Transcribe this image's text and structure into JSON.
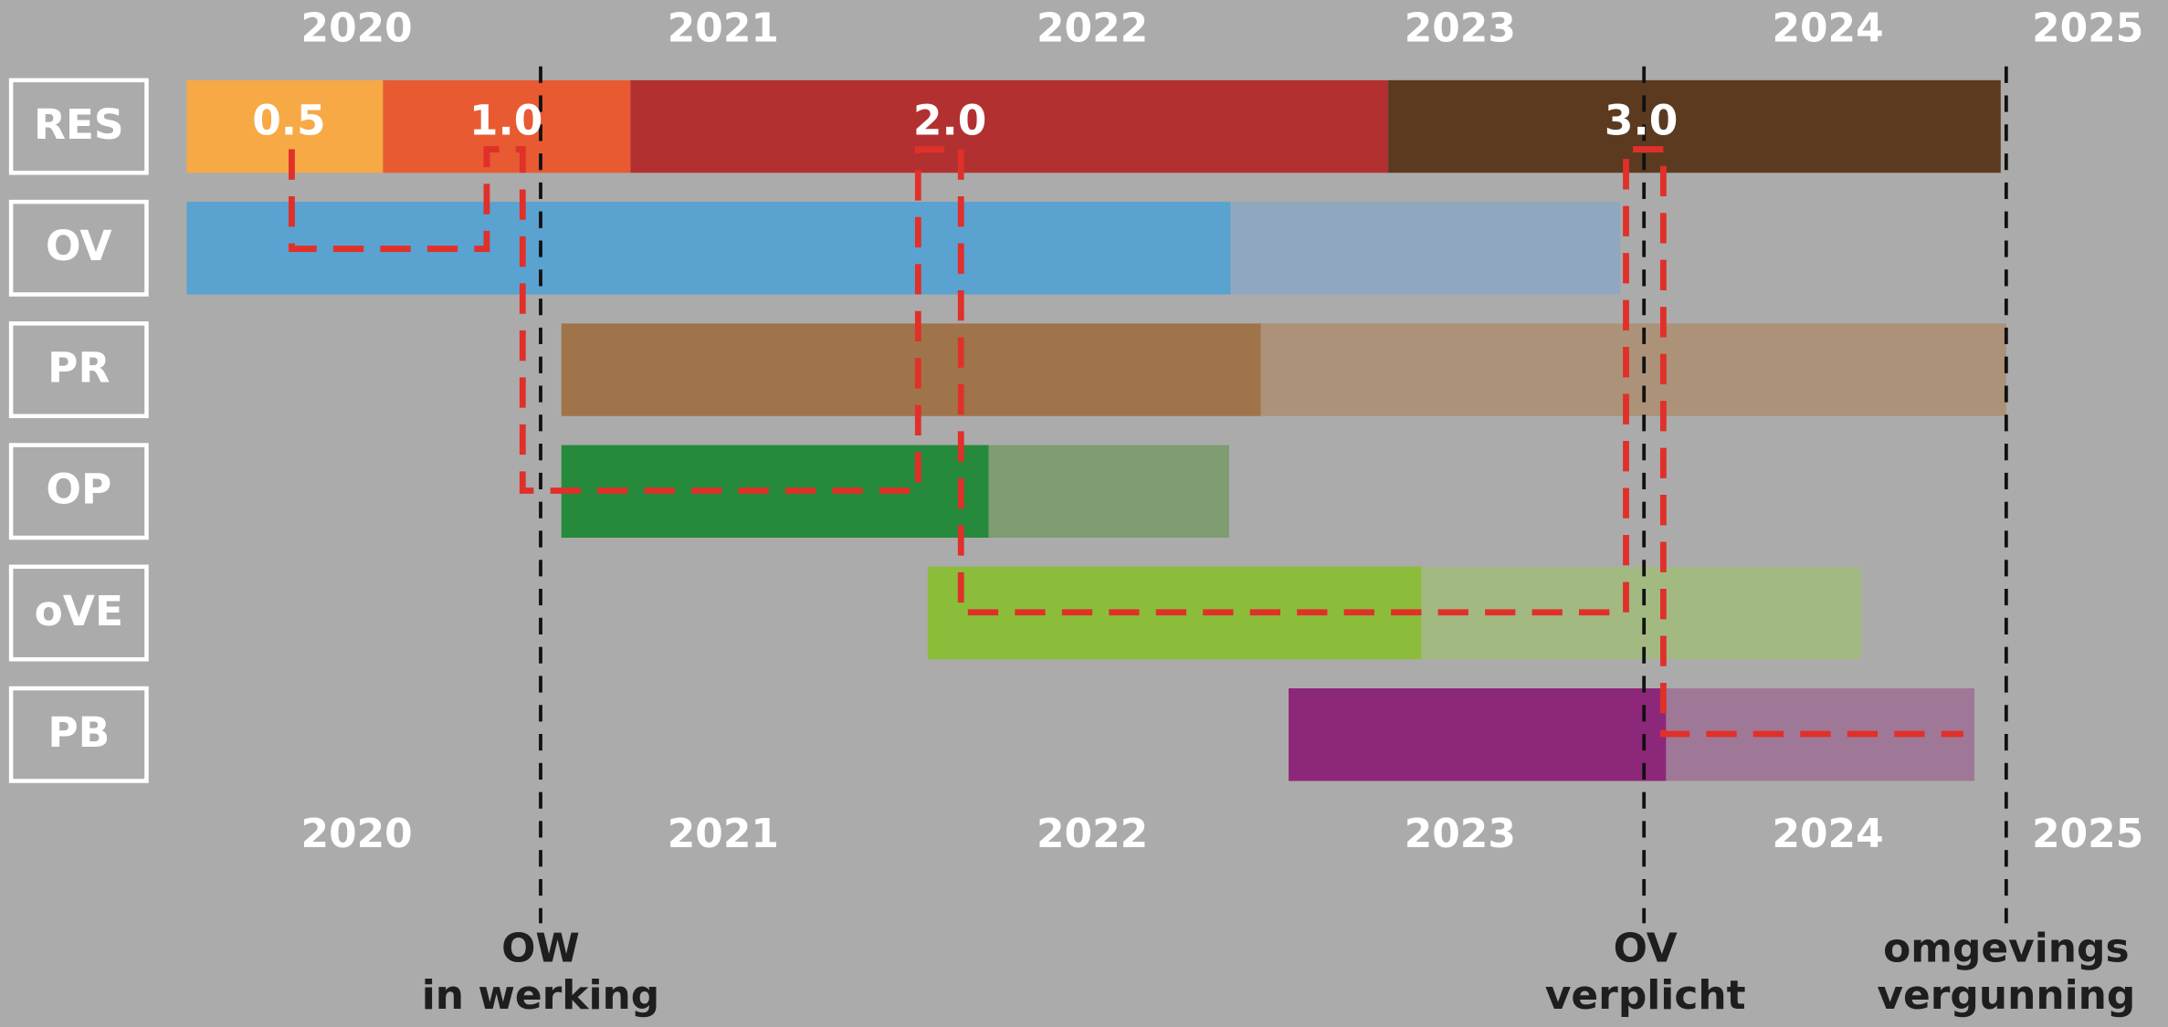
{
  "years": [
    "2020",
    "2021",
    "2022",
    "2023",
    "2024",
    "2025"
  ],
  "rows": [
    "RES",
    "OV",
    "PR",
    "OP",
    "oVE",
    "PB"
  ],
  "versions": [
    "0.5",
    "1.0",
    "2.0",
    "3.0"
  ],
  "milestones": [
    {
      "line1": "OW",
      "line2": "in werking"
    },
    {
      "line1": "OV",
      "line2": "verplicht"
    },
    {
      "line1": "omgevings",
      "line2": "vergunning"
    }
  ]
}
